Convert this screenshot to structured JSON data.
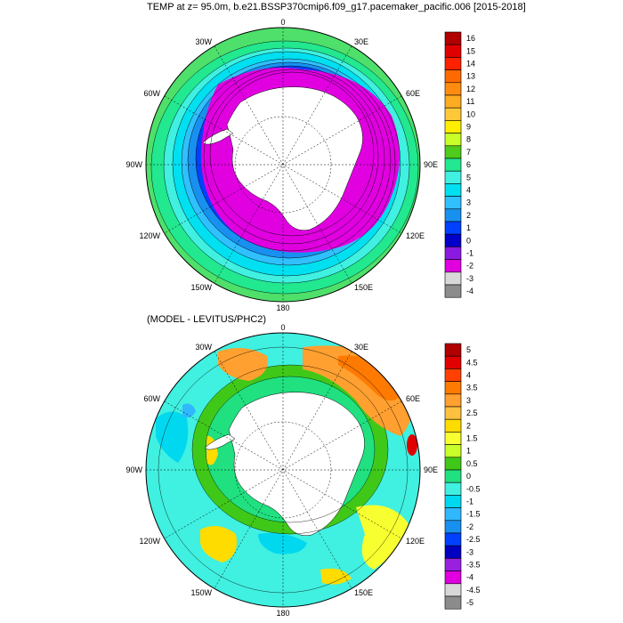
{
  "titles": {
    "main": "TEMP at z=  95.0m, b.e21.BSSP370cmip6.f09_g17.pacemaker_pacific.006 [2015-2018]",
    "diff": "(MODEL - LEVITUS/PHC2)"
  },
  "lon_labels": [
    "0",
    "30E",
    "60E",
    "90E",
    "120E",
    "150E",
    "180",
    "150W",
    "120W",
    "90W",
    "60W",
    "30W"
  ],
  "colorbar_top": {
    "labels": [
      "16",
      "15",
      "14",
      "13",
      "12",
      "11",
      "10",
      "9",
      "8",
      "7",
      "6",
      "5",
      "4",
      "3",
      "2",
      "1",
      "0",
      "-1",
      "-2",
      "-3",
      "-4"
    ],
    "colors": [
      "#b00000",
      "#e00000",
      "#ff2000",
      "#ff6a00",
      "#ff8c10",
      "#ffac20",
      "#ffc838",
      "#ffee00",
      "#c8ff2a",
      "#4ecb1c",
      "#22e890",
      "#40f0e0",
      "#00e0f0",
      "#30c0ff",
      "#1890f0",
      "#0040ff",
      "#0000c8",
      "#8a1ae0",
      "#e000e0",
      "#d8d8d8",
      "#8c8c8c"
    ]
  },
  "colorbar_bottom": {
    "labels": [
      "5",
      "4.5",
      "4",
      "3.5",
      "3",
      "2.5",
      "2",
      "1.5",
      "1",
      "0.5",
      "0",
      "-0.5",
      "-1",
      "-1.5",
      "-2",
      "-2.5",
      "-3",
      "-3.5",
      "-4",
      "-4.5",
      "-5"
    ],
    "colors": [
      "#b00000",
      "#e00000",
      "#ff4000",
      "#ff7a00",
      "#ffa030",
      "#ffc040",
      "#ffdc00",
      "#f8ff30",
      "#c8ff2a",
      "#40c818",
      "#20e080",
      "#40f0e0",
      "#00d8f0",
      "#30b8ff",
      "#1890f0",
      "#0040ff",
      "#0000c0",
      "#9a20e0",
      "#e000e0",
      "#d8d8d8",
      "#8c8c8c"
    ]
  }
}
